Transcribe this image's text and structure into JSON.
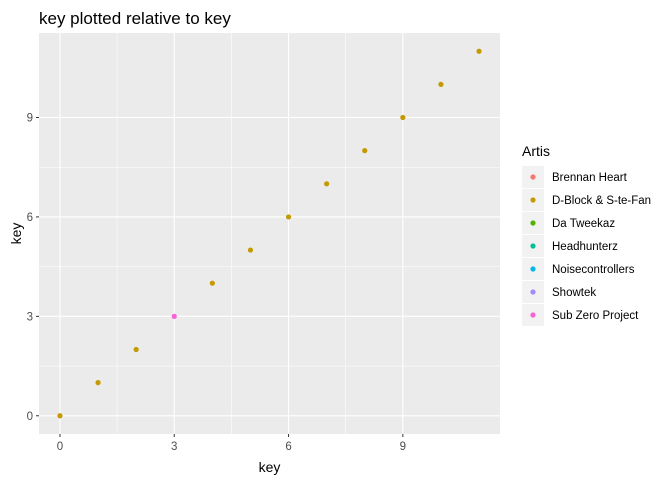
{
  "chart_data": {
    "type": "scatter",
    "title": "key plotted relative to key",
    "xlabel": "key",
    "ylabel": "key",
    "xlim": [
      -0.55,
      11.55
    ],
    "ylim": [
      -0.55,
      11.55
    ],
    "x_ticks": [
      0,
      3,
      6,
      9
    ],
    "x_tick_labels": [
      "0",
      "3",
      "6",
      "9"
    ],
    "y_ticks": [
      0,
      3,
      6,
      9
    ],
    "y_tick_labels": [
      "0",
      "3",
      "6",
      "9"
    ],
    "grid": true,
    "legend": {
      "title": "Artis",
      "position": "right",
      "entries": [
        {
          "name": "Brennan Heart",
          "color": "#F8766D"
        },
        {
          "name": "D-Block & S-te-Fan",
          "color": "#C49A00"
        },
        {
          "name": "Da Tweekaz",
          "color": "#53B400"
        },
        {
          "name": "Headhunterz",
          "color": "#00C094"
        },
        {
          "name": "Noisecontrollers",
          "color": "#00B6EB"
        },
        {
          "name": "Showtek",
          "color": "#A58AFF"
        },
        {
          "name": "Sub Zero Project",
          "color": "#FB61D7"
        }
      ]
    },
    "points": [
      {
        "x": 0,
        "y": 0,
        "artist": "D-Block & S-te-Fan"
      },
      {
        "x": 1,
        "y": 1,
        "artist": "D-Block & S-te-Fan"
      },
      {
        "x": 2,
        "y": 2,
        "artist": "D-Block & S-te-Fan"
      },
      {
        "x": 3,
        "y": 3,
        "artist": "Sub Zero Project"
      },
      {
        "x": 4,
        "y": 4,
        "artist": "D-Block & S-te-Fan"
      },
      {
        "x": 5,
        "y": 5,
        "artist": "D-Block & S-te-Fan"
      },
      {
        "x": 6,
        "y": 6,
        "artist": "D-Block & S-te-Fan"
      },
      {
        "x": 7,
        "y": 7,
        "artist": "D-Block & S-te-Fan"
      },
      {
        "x": 8,
        "y": 8,
        "artist": "D-Block & S-te-Fan"
      },
      {
        "x": 9,
        "y": 9,
        "artist": "D-Block & S-te-Fan"
      },
      {
        "x": 10,
        "y": 10,
        "artist": "D-Block & S-te-Fan"
      },
      {
        "x": 11,
        "y": 11,
        "artist": "D-Block & S-te-Fan"
      }
    ]
  }
}
